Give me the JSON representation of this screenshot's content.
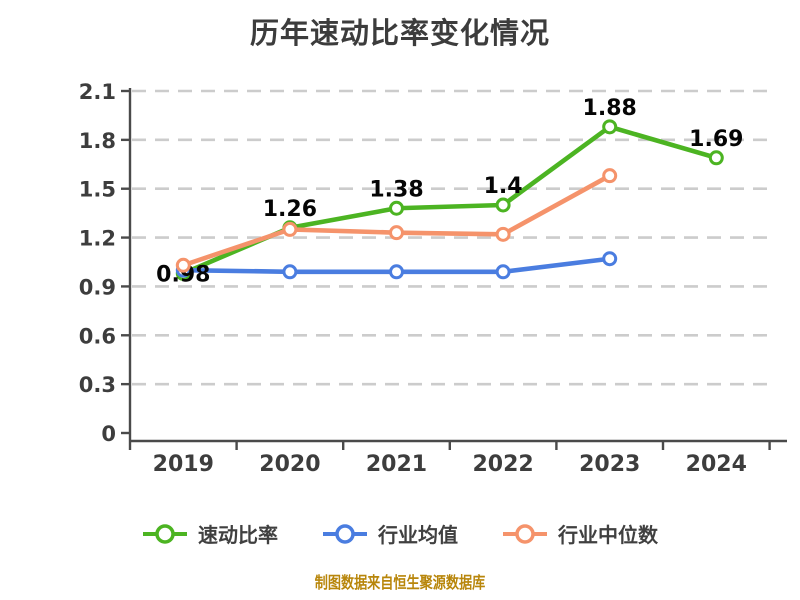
{
  "title": "历年速动比率变化情况",
  "footer": "制图数据来自恒生聚源数据库",
  "colors": {
    "quick_ratio_green": "#4cb422",
    "industry_avg_blue": "#4a7de0",
    "industry_median_orange": "#f5936b",
    "axis": "#4a4a4a",
    "axis_text": "#3d3d3d",
    "grid": "#cccccc",
    "value_label": "#050505",
    "footer_text": "#b8860b",
    "marker_fill": "#ffffff"
  },
  "legend": {
    "items": [
      {
        "label": "速动比率",
        "color": "#4cb422",
        "marker": "hollow-circle-line"
      },
      {
        "label": "行业均值",
        "color": "#4a7de0",
        "marker": "hollow-circle-line"
      },
      {
        "label": "行业中位数",
        "color": "#f5936b",
        "marker": "hollow-circle-line"
      }
    ]
  },
  "chart_data": {
    "type": "line",
    "title": "历年速动比率变化情况",
    "categories": [
      "2019",
      "2020",
      "2021",
      "2022",
      "2023",
      "2024"
    ],
    "series": [
      {
        "name": "速动比率",
        "color": "#4cb422",
        "values": [
          0.98,
          1.26,
          1.38,
          1.4,
          1.88,
          1.69
        ]
      },
      {
        "name": "行业均值",
        "color": "#4a7de0",
        "values": [
          1.0,
          0.99,
          0.99,
          0.99,
          1.07,
          null
        ]
      },
      {
        "name": "行业中位数",
        "color": "#f5936b",
        "values": [
          1.03,
          1.25,
          1.23,
          1.22,
          1.58,
          null
        ]
      }
    ],
    "data_labels": [
      "0.98",
      "1.26",
      "1.38",
      "1.4",
      "1.88",
      "1.69"
    ],
    "xlabel": "",
    "ylabel": "",
    "ylim": [
      0,
      2.1
    ],
    "yticks": [
      0,
      0.3,
      0.6,
      0.9,
      1.2,
      1.5,
      1.8,
      2.1
    ],
    "grid": "horizontal-dashed",
    "legend_position": "bottom"
  }
}
